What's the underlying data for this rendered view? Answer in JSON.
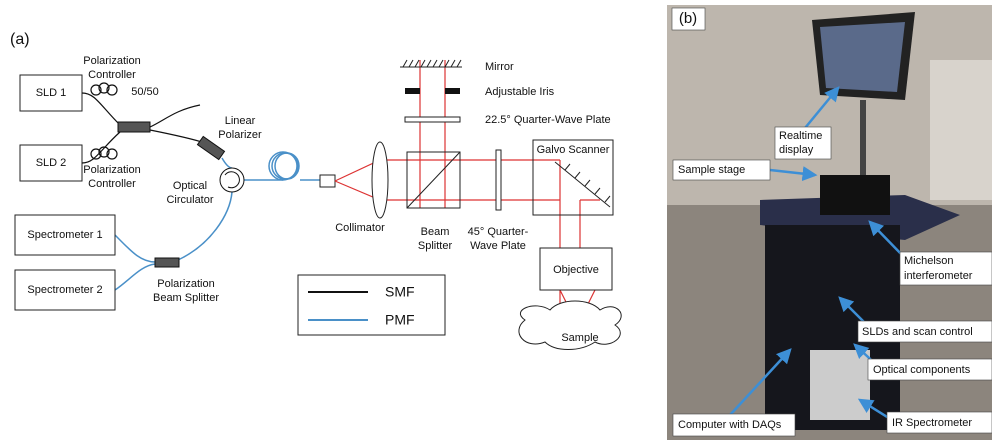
{
  "panel_a": {
    "label": "(a)",
    "sld1": "SLD 1",
    "sld2": "SLD 2",
    "pol_controller_top": [
      "Polarization",
      "Controller"
    ],
    "pol_controller_bottom": [
      "Polarization",
      "Controller"
    ],
    "coupler": "50/50",
    "linear_polarizer": [
      "Linear",
      "Polarizer"
    ],
    "circulator": [
      "Optical",
      "Circulator"
    ],
    "spectrometer1": "Spectrometer 1",
    "spectrometer2": "Spectrometer 2",
    "pbs": [
      "Polarization",
      "Beam Splitter"
    ],
    "collimator": "Collimator",
    "mirror": "Mirror",
    "iris": "Adjustable Iris",
    "qwp_22": "22.5° Quarter-Wave Plate",
    "beam_splitter": [
      "Beam",
      "Splitter"
    ],
    "qwp_45": [
      "45° Quarter-",
      "Wave Plate"
    ],
    "galvo": "Galvo Scanner",
    "objective": "Objective",
    "sample": "Sample",
    "legend": {
      "smf": "SMF",
      "pmf": "PMF"
    }
  },
  "panel_b": {
    "label": "(b)",
    "realtime_display": [
      "Realtime",
      "display"
    ],
    "sample_stage": "Sample stage",
    "michelson": [
      "Michelson",
      "interferometer"
    ],
    "slds": "SLDs and scan control",
    "optical": "Optical components",
    "ir": "IR Spectrometer",
    "computer": "Computer with DAQs"
  }
}
